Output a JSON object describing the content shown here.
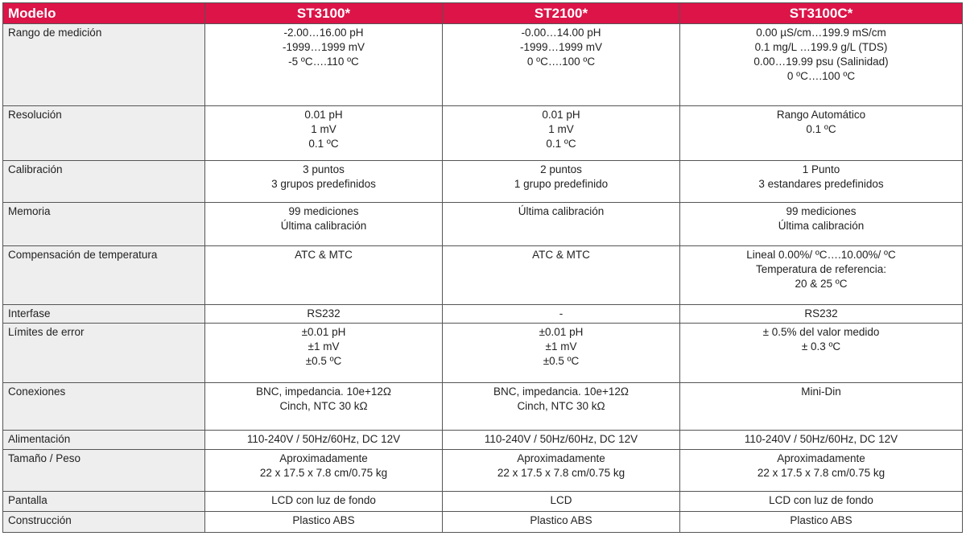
{
  "colors": {
    "header_bg": "#dc1448",
    "label_bg": "#eeeeee"
  },
  "headers": [
    "Modelo",
    "ST3100*",
    "ST2100*",
    "ST3100C*"
  ],
  "rows": [
    {
      "label": "Rango de medición",
      "cells": [
        [
          "-2.00…16.00 pH",
          "-1999…1999 mV",
          "-5 ºC….110 ºC"
        ],
        [
          "-0.00…14.00 pH",
          "-1999…1999 mV",
          "0 ºC….100 ºC"
        ],
        [
          "0.00 µS/cm…199.9 mS/cm",
          "0.1 mg/L …199.9 g/L (TDS)",
          "0.00…19.99 psu (Salinidad)",
          "0 ºC….100 ºC"
        ]
      ]
    },
    {
      "label": "Resolución",
      "cells": [
        [
          "0.01 pH",
          "1 mV",
          "0.1 ºC"
        ],
        [
          "0.01 pH",
          "1 mV",
          "0.1 ºC"
        ],
        [
          "Rango Automático",
          "0.1 ºC"
        ]
      ]
    },
    {
      "label": "Calibración",
      "cells": [
        [
          "3 puntos",
          "3 grupos predefinidos"
        ],
        [
          "2 puntos",
          "1 grupo predefinido"
        ],
        [
          "1 Punto",
          "3 estandares predefinidos"
        ]
      ]
    },
    {
      "label": "Memoria",
      "cells": [
        [
          "99 mediciones",
          "Última calibración"
        ],
        [
          "Última calibración"
        ],
        [
          "99 mediciones",
          "Última calibración"
        ]
      ]
    },
    {
      "label": "Compensación de temperatura",
      "cells": [
        [
          "ATC & MTC"
        ],
        [
          "ATC & MTC"
        ],
        [
          "Lineal 0.00%/ ºC….10.00%/ ºC",
          "Temperatura de referencia:",
          "20 & 25 ºC"
        ]
      ]
    },
    {
      "label": "Interfase",
      "cells": [
        [
          "RS232"
        ],
        [
          "-"
        ],
        [
          "RS232"
        ]
      ]
    },
    {
      "label": "Límites de error",
      "cells": [
        [
          "±0.01 pH",
          "±1 mV",
          "±0.5 ºC"
        ],
        [
          "±0.01 pH",
          "±1 mV",
          "±0.5 ºC"
        ],
        [
          "± 0.5% del valor medido",
          "±  0.3 ºC"
        ]
      ]
    },
    {
      "label": "Conexiones",
      "cells": [
        [
          "BNC, impedancia. 10e+12Ω",
          "Cinch, NTC 30 kΩ"
        ],
        [
          "BNC, impedancia. 10e+12Ω",
          "Cinch, NTC 30 kΩ"
        ],
        [
          "Mini-Din"
        ]
      ]
    },
    {
      "label": "Alimentación",
      "cells": [
        [
          "110-240V / 50Hz/60Hz, DC 12V"
        ],
        [
          "110-240V / 50Hz/60Hz, DC 12V"
        ],
        [
          "110-240V / 50Hz/60Hz, DC 12V"
        ]
      ]
    },
    {
      "label": "Tamaño / Peso",
      "cells": [
        [
          "Aproximadamente",
          "22 x 17.5 x 7.8 cm/0.75 kg"
        ],
        [
          "Aproximadamente",
          "22 x 17.5 x 7.8 cm/0.75 kg"
        ],
        [
          "Aproximadamente",
          "22 x 17.5 x 7.8 cm/0.75 kg"
        ]
      ]
    },
    {
      "label": "Pantalla",
      "cells": [
        [
          "LCD con luz de fondo"
        ],
        [
          "LCD"
        ],
        [
          "LCD con luz de fondo"
        ]
      ]
    },
    {
      "label": "Construcción",
      "cells": [
        [
          "Plastico ABS"
        ],
        [
          "Plastico ABS"
        ],
        [
          "Plastico ABS"
        ]
      ]
    }
  ]
}
